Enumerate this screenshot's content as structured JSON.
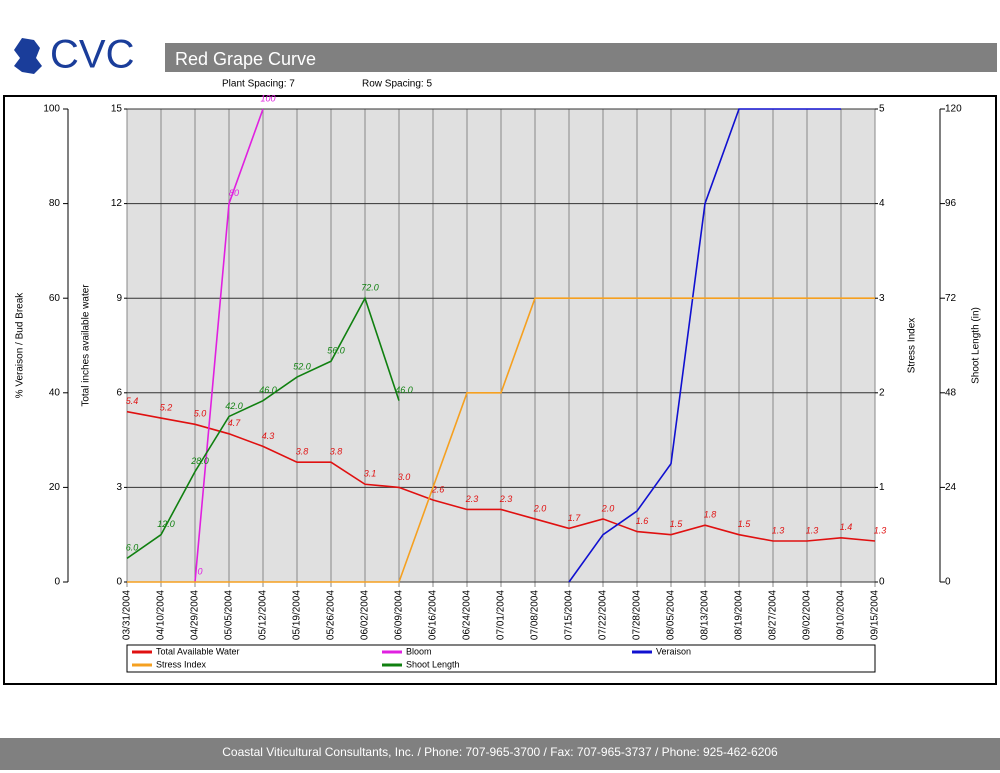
{
  "header": {
    "logo": "CVC",
    "title": "Red Grape Curve",
    "plant_spacing": "Plant Spacing: 7",
    "row_spacing": "Row Spacing: 5"
  },
  "chart_data": {
    "type": "line",
    "categories": [
      "03/31/2004",
      "04/10/2004",
      "04/29/2004",
      "05/05/2004",
      "05/12/2004",
      "05/19/2004",
      "05/26/2004",
      "06/02/2004",
      "06/09/2004",
      "06/16/2004",
      "06/24/2004",
      "07/01/2004",
      "07/08/2004",
      "07/15/2004",
      "07/22/2004",
      "07/28/2004",
      "08/05/2004",
      "08/13/2004",
      "08/19/2004",
      "08/27/2004",
      "09/02/2004",
      "09/10/2004",
      "09/15/2004"
    ],
    "ylabel": "% Veraison / Bud Break",
    "ylim": [
      0,
      100
    ],
    "yticks": [
      0,
      20,
      40,
      60,
      80,
      100
    ],
    "y2label": "Total inches available water",
    "y2lim": [
      0,
      15
    ],
    "y2ticks": [
      0,
      3,
      6,
      9,
      12,
      15
    ],
    "y3label": "Stress Index",
    "y3lim": [
      0,
      5
    ],
    "y3ticks": [
      0,
      1,
      2,
      3,
      4,
      5
    ],
    "y4label": "Shoot Length (in)",
    "y4lim": [
      0,
      120
    ],
    "y4ticks": [
      0,
      24,
      48,
      72,
      96,
      120
    ],
    "grid": true,
    "series": [
      {
        "name": "Total Available Water",
        "color": "#e01010",
        "axis": "y2",
        "values": [
          5.4,
          5.2,
          5.0,
          4.7,
          4.3,
          3.8,
          3.8,
          3.1,
          3.0,
          2.6,
          2.3,
          2.3,
          2.0,
          1.7,
          2.0,
          1.6,
          1.5,
          1.8,
          1.5,
          1.3,
          1.3,
          1.4,
          1.3
        ],
        "value_labels": [
          "5.4",
          "5.2",
          "5.0",
          "4.7",
          "4.3",
          "3.8",
          "3.8",
          "3.1",
          "3.0",
          "2.6",
          "2.3",
          "2.3",
          "2.0",
          "1.7",
          "2.0",
          "1.6",
          "1.5",
          "1.8",
          "1.5",
          "1.3",
          "1.3",
          "1.4",
          "1.3"
        ]
      },
      {
        "name": "Bloom",
        "color": "#e020e0",
        "axis": "y",
        "values": [
          null,
          null,
          0,
          80,
          100,
          null,
          null,
          null,
          null,
          null,
          null,
          null,
          null,
          null,
          null,
          null,
          null,
          null,
          null,
          null,
          null,
          null,
          null
        ],
        "value_labels": [
          null,
          null,
          "0",
          "80",
          "100",
          null,
          null,
          null,
          null,
          null,
          null,
          null,
          null,
          null,
          null,
          null,
          null,
          null,
          null,
          null,
          null,
          null,
          null
        ]
      },
      {
        "name": "Veraison",
        "color": "#1010d0",
        "axis": "y",
        "values": [
          null,
          null,
          null,
          null,
          null,
          null,
          null,
          null,
          null,
          null,
          null,
          null,
          null,
          0,
          10,
          15,
          25,
          80,
          100,
          100,
          100,
          100,
          null
        ]
      },
      {
        "name": "Stress Index",
        "color": "#f5a020",
        "axis": "y3",
        "values": [
          0,
          0,
          0,
          0,
          0,
          0,
          0,
          0,
          0,
          1,
          2,
          2,
          3,
          3,
          3,
          3,
          3,
          3,
          3,
          3,
          3,
          3,
          3
        ]
      },
      {
        "name": "Shoot Length",
        "color": "#108010",
        "axis": "y4",
        "values": [
          6.0,
          12.0,
          28.0,
          42.0,
          46.0,
          52.0,
          56.0,
          72.0,
          46.0,
          null,
          null,
          null,
          null,
          null,
          null,
          null,
          null,
          null,
          null,
          null,
          null,
          null,
          null
        ],
        "value_labels": [
          "6.0",
          "12.0",
          "28.0",
          "42.0",
          "46.0",
          "52.0",
          "56.0",
          "72.0",
          "46.0",
          null,
          null,
          null,
          null,
          null,
          null,
          null,
          null,
          null,
          null,
          null,
          null,
          null,
          null
        ]
      }
    ]
  },
  "footer": "Coastal Viticultural Consultants, Inc. / Phone: 707-965-3700 / Fax: 707-965-3737 / Phone: 925-462-6206"
}
